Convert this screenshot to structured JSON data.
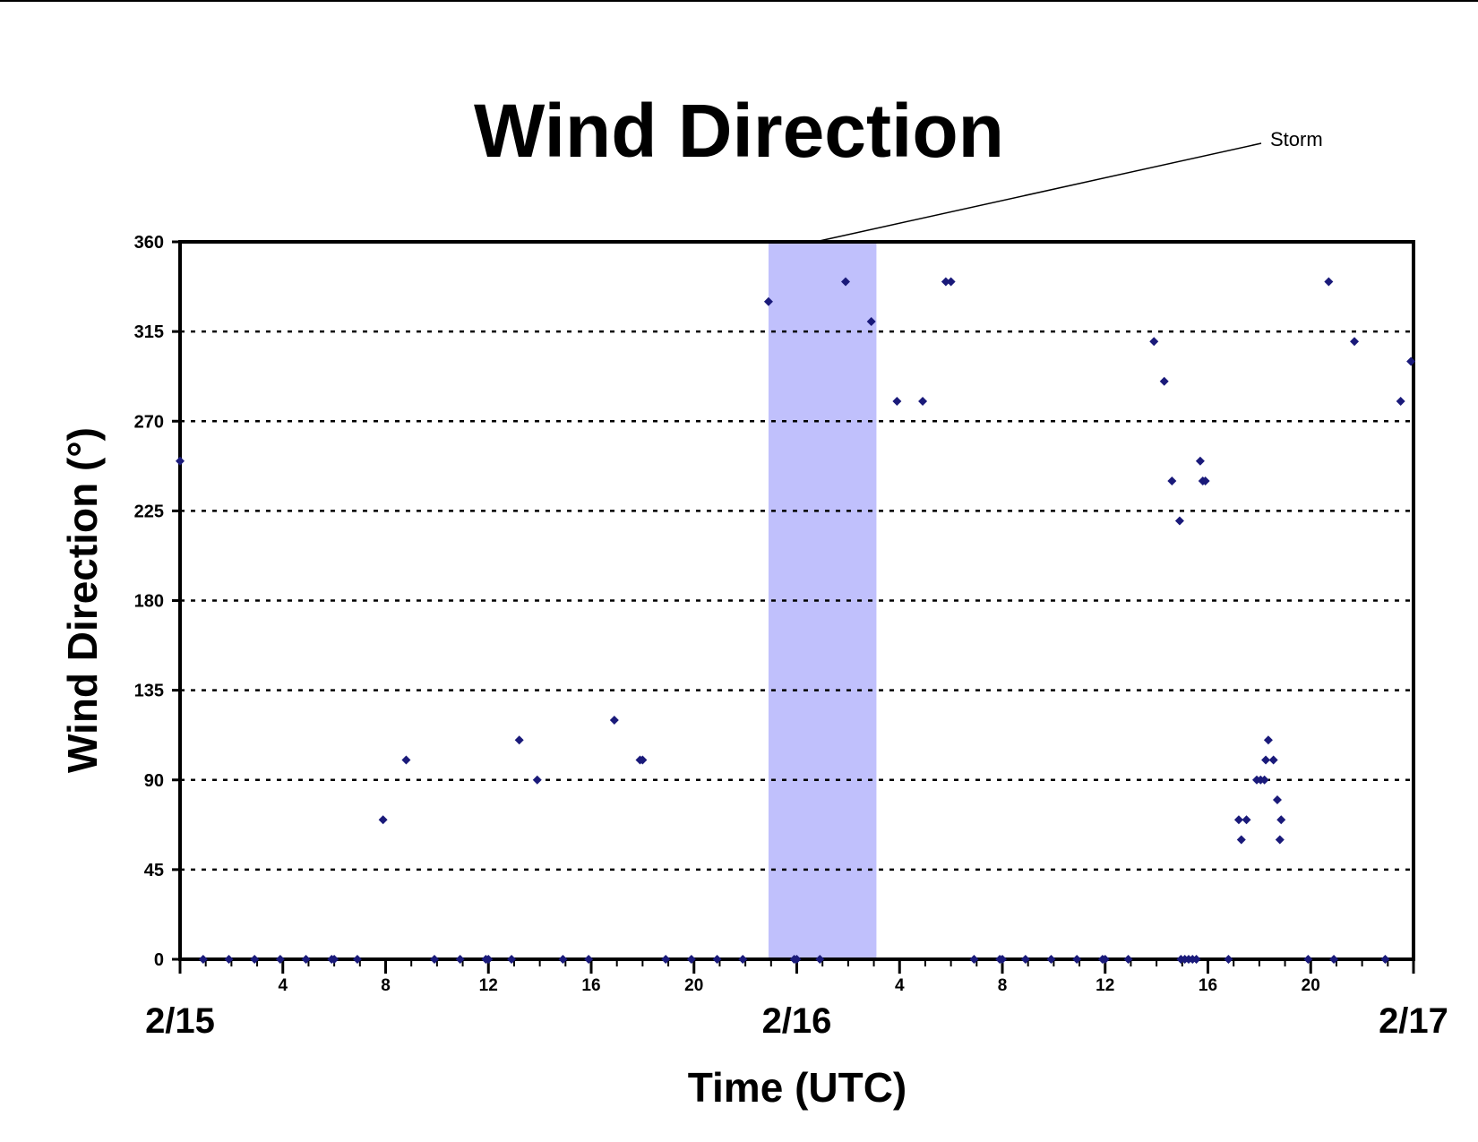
{
  "chart_data": {
    "type": "scatter",
    "title": "Wind Direction",
    "xlabel": "Time (UTC)",
    "ylabel": "Wind Direction (°)",
    "ylim": [
      0,
      360
    ],
    "yticks": [
      0,
      45,
      90,
      135,
      180,
      225,
      270,
      315,
      360
    ],
    "x_units": "hours after 2/15 00 UTC",
    "xlim": [
      0,
      48
    ],
    "x_hour_ticks": [
      {
        "hour": 4,
        "label": "4"
      },
      {
        "hour": 8,
        "label": "8"
      },
      {
        "hour": 12,
        "label": "12"
      },
      {
        "hour": 16,
        "label": "16"
      },
      {
        "hour": 20,
        "label": "20"
      },
      {
        "hour": 28,
        "label": "4"
      },
      {
        "hour": 32,
        "label": "8"
      },
      {
        "hour": 36,
        "label": "12"
      },
      {
        "hour": 40,
        "label": "16"
      },
      {
        "hour": 44,
        "label": "20"
      }
    ],
    "x_date_labels": [
      {
        "hour": 0,
        "label": "2/15"
      },
      {
        "hour": 24,
        "label": "2/16"
      },
      {
        "hour": 48,
        "label": "2/17"
      }
    ],
    "grid": {
      "horizontal": true,
      "style": "dotted"
    },
    "colors": {
      "marker": "#1a1a7a",
      "storm_band": "#c0c0fc",
      "frame": "#000000"
    },
    "storm_period": {
      "label": "Storm",
      "start": 22.9,
      "end": 27.1
    },
    "series": [
      {
        "points": [
          [
            0,
            250
          ],
          [
            0.9,
            0
          ],
          [
            1.9,
            0
          ],
          [
            2.9,
            0
          ],
          [
            3.9,
            0
          ],
          [
            4.9,
            0
          ],
          [
            5.9,
            0
          ],
          [
            6,
            0
          ],
          [
            6.9,
            0
          ],
          [
            7.9,
            70
          ],
          [
            8.8,
            100
          ],
          [
            9.9,
            0
          ],
          [
            10.9,
            0
          ],
          [
            11.9,
            0
          ],
          [
            12,
            0
          ],
          [
            12.9,
            0
          ],
          [
            13.2,
            110
          ],
          [
            13.9,
            90
          ],
          [
            14.9,
            0
          ],
          [
            15.9,
            0
          ],
          [
            16.9,
            120
          ],
          [
            17.9,
            100
          ],
          [
            18,
            100
          ],
          [
            18.9,
            0
          ],
          [
            19.9,
            0
          ],
          [
            20.9,
            0
          ],
          [
            21.9,
            0
          ],
          [
            22.9,
            330
          ],
          [
            23.9,
            0
          ],
          [
            24,
            0
          ],
          [
            24.9,
            0
          ],
          [
            25.9,
            340
          ],
          [
            26.9,
            320
          ],
          [
            27.9,
            280
          ],
          [
            28.9,
            280
          ],
          [
            29.8,
            340
          ],
          [
            30,
            340
          ],
          [
            30.9,
            0
          ],
          [
            31.9,
            0
          ],
          [
            32,
            0
          ],
          [
            32.9,
            0
          ],
          [
            33.9,
            0
          ],
          [
            34.9,
            0
          ],
          [
            35.9,
            0
          ],
          [
            36,
            0
          ],
          [
            36.9,
            0
          ],
          [
            37.9,
            310
          ],
          [
            38.3,
            290
          ],
          [
            38.6,
            240
          ],
          [
            38.9,
            220
          ],
          [
            38.95,
            0
          ],
          [
            39.1,
            0
          ],
          [
            39.25,
            0
          ],
          [
            39.4,
            0
          ],
          [
            39.55,
            0
          ],
          [
            39.7,
            250
          ],
          [
            39.8,
            240
          ],
          [
            39.9,
            240
          ],
          [
            40.8,
            0
          ],
          [
            41.2,
            70
          ],
          [
            41.3,
            60
          ],
          [
            41.5,
            70
          ],
          [
            41.9,
            90
          ],
          [
            42.05,
            90
          ],
          [
            42.2,
            90
          ],
          [
            42.25,
            100
          ],
          [
            42.35,
            110
          ],
          [
            42.55,
            100
          ],
          [
            42.7,
            80
          ],
          [
            42.8,
            60
          ],
          [
            42.85,
            70
          ],
          [
            43.9,
            0
          ],
          [
            44.7,
            340
          ],
          [
            44.9,
            0
          ],
          [
            45.7,
            310
          ],
          [
            46.9,
            0
          ],
          [
            47.5,
            280
          ],
          [
            47.9,
            300
          ]
        ]
      }
    ]
  }
}
